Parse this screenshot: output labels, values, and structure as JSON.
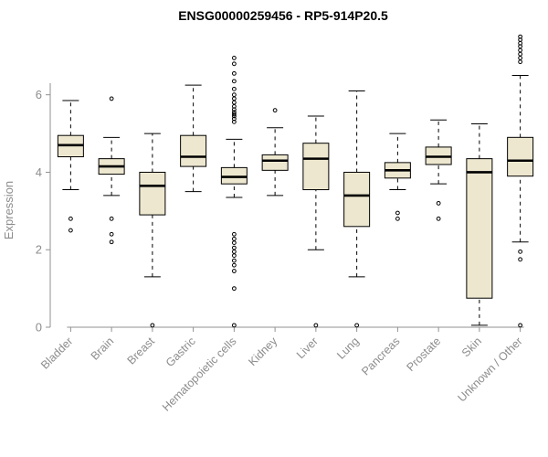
{
  "chart_data": {
    "type": "boxplot",
    "title": "ENSG00000259456 - RP5-914P20.5",
    "ylabel": "Expression",
    "xlabel": "",
    "ylim": [
      0,
      7.55
    ],
    "yticks": [
      0,
      2,
      4,
      6
    ],
    "grid": false,
    "legend": false,
    "colors": {
      "box_fill": "#EDE7CF",
      "box_stroke": "#000000",
      "median": "#000000",
      "whisker": "#000000",
      "axis": "#909090",
      "tick_label": "#8c8c8c",
      "title": "#000000"
    },
    "categories": [
      "Bladder",
      "Brain",
      "Breast",
      "Gastric",
      "Hematopoietic cells",
      "Kidney",
      "Liver",
      "Lung",
      "Pancreas",
      "Prostate",
      "Skin",
      "Unknown / Other"
    ],
    "boxes": [
      {
        "category": "Bladder",
        "whisker_low": 3.55,
        "q1": 4.4,
        "median": 4.7,
        "q3": 4.95,
        "whisker_high": 5.85,
        "outliers": [
          2.8,
          2.5
        ]
      },
      {
        "category": "Brain",
        "whisker_low": 3.4,
        "q1": 3.95,
        "median": 4.15,
        "q3": 4.35,
        "whisker_high": 4.9,
        "outliers": [
          5.9,
          2.8,
          2.4,
          2.2
        ]
      },
      {
        "category": "Breast",
        "whisker_low": 1.3,
        "q1": 2.9,
        "median": 3.65,
        "q3": 4.0,
        "whisker_high": 5.0,
        "outliers": [
          0.05
        ]
      },
      {
        "category": "Gastric",
        "whisker_low": 3.5,
        "q1": 4.15,
        "median": 4.4,
        "q3": 4.95,
        "whisker_high": 6.25,
        "outliers": []
      },
      {
        "category": "Hematopoietic cells",
        "whisker_low": 3.35,
        "q1": 3.7,
        "median": 3.88,
        "q3": 4.12,
        "whisker_high": 4.85,
        "outliers": [
          6.95,
          6.8,
          6.55,
          6.35,
          6.15,
          6.0,
          5.9,
          5.8,
          5.7,
          5.62,
          5.55,
          5.5,
          5.45,
          5.38,
          5.3,
          2.4,
          2.28,
          2.18,
          2.05,
          1.95,
          1.85,
          1.72,
          1.6,
          1.45,
          1.0,
          0.05
        ]
      },
      {
        "category": "Kidney",
        "whisker_low": 3.4,
        "q1": 4.05,
        "median": 4.3,
        "q3": 4.45,
        "whisker_high": 5.15,
        "outliers": [
          5.6
        ]
      },
      {
        "category": "Liver",
        "whisker_low": 2.0,
        "q1": 3.55,
        "median": 4.35,
        "q3": 4.75,
        "whisker_high": 5.45,
        "outliers": [
          0.05
        ]
      },
      {
        "category": "Lung",
        "whisker_low": 1.3,
        "q1": 2.6,
        "median": 3.4,
        "q3": 4.0,
        "whisker_high": 6.1,
        "outliers": [
          0.05
        ]
      },
      {
        "category": "Pancreas",
        "whisker_low": 3.55,
        "q1": 3.85,
        "median": 4.05,
        "q3": 4.25,
        "whisker_high": 5.0,
        "outliers": [
          2.95,
          2.8
        ]
      },
      {
        "category": "Prostate",
        "whisker_low": 3.7,
        "q1": 4.2,
        "median": 4.4,
        "q3": 4.65,
        "whisker_high": 5.35,
        "outliers": [
          3.2,
          2.8
        ]
      },
      {
        "category": "Skin",
        "whisker_low": 0.05,
        "q1": 0.75,
        "median": 4.0,
        "q3": 4.35,
        "whisker_high": 5.25,
        "outliers": []
      },
      {
        "category": "Unknown / Other",
        "whisker_low": 2.2,
        "q1": 3.9,
        "median": 4.3,
        "q3": 4.9,
        "whisker_high": 6.5,
        "outliers": [
          7.5,
          7.42,
          7.33,
          7.25,
          7.15,
          7.05,
          6.95,
          6.85,
          1.95,
          1.75,
          0.05
        ]
      }
    ]
  }
}
